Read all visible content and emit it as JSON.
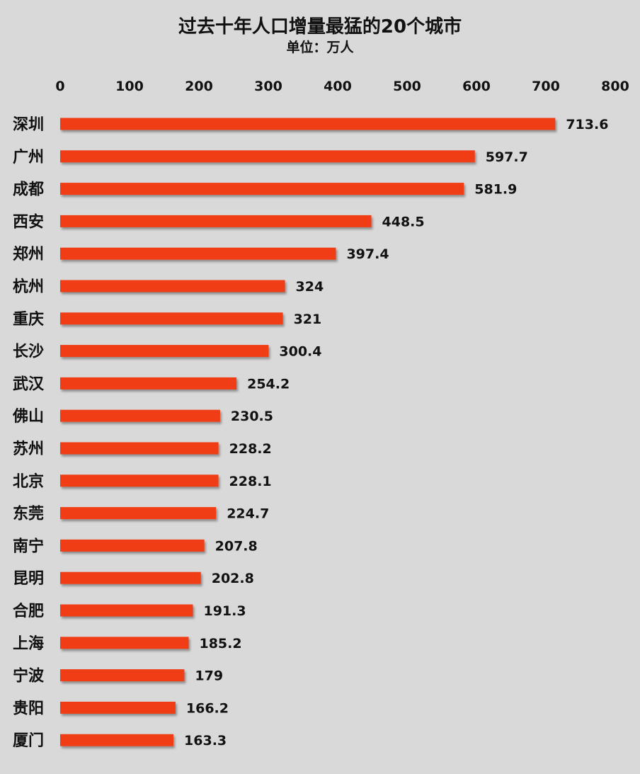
{
  "chart_data": {
    "type": "bar",
    "orientation": "horizontal",
    "title": "过去十年人口增量最猛的20个城市",
    "subtitle": "单位：万人",
    "xlim": [
      0,
      800
    ],
    "xticks": [
      "0",
      "100",
      "200",
      "300",
      "400",
      "500",
      "600",
      "700",
      "800"
    ],
    "xaxis_position": "top",
    "grid": false,
    "bar_color": "#f03c13",
    "categories": [
      "深圳",
      "广州",
      "成都",
      "西安",
      "郑州",
      "杭州",
      "重庆",
      "长沙",
      "武汉",
      "佛山",
      "苏州",
      "北京",
      "东莞",
      "南宁",
      "昆明",
      "合肥",
      "上海",
      "宁波",
      "贵阳",
      "厦门"
    ],
    "values": [
      713.6,
      597.7,
      581.9,
      448.5,
      397.4,
      324,
      321,
      300.4,
      254.2,
      230.5,
      228.2,
      228.1,
      224.7,
      207.8,
      202.8,
      191.3,
      185.2,
      179,
      166.2,
      163.3
    ],
    "value_labels": [
      "713.6",
      "597.7",
      "581.9",
      "448.5",
      "397.4",
      "324",
      "321",
      "300.4",
      "254.2",
      "230.5",
      "228.2",
      "228.1",
      "224.7",
      "207.8",
      "202.8",
      "191.3",
      "185.2",
      "179",
      "166.2",
      "163.3"
    ]
  }
}
